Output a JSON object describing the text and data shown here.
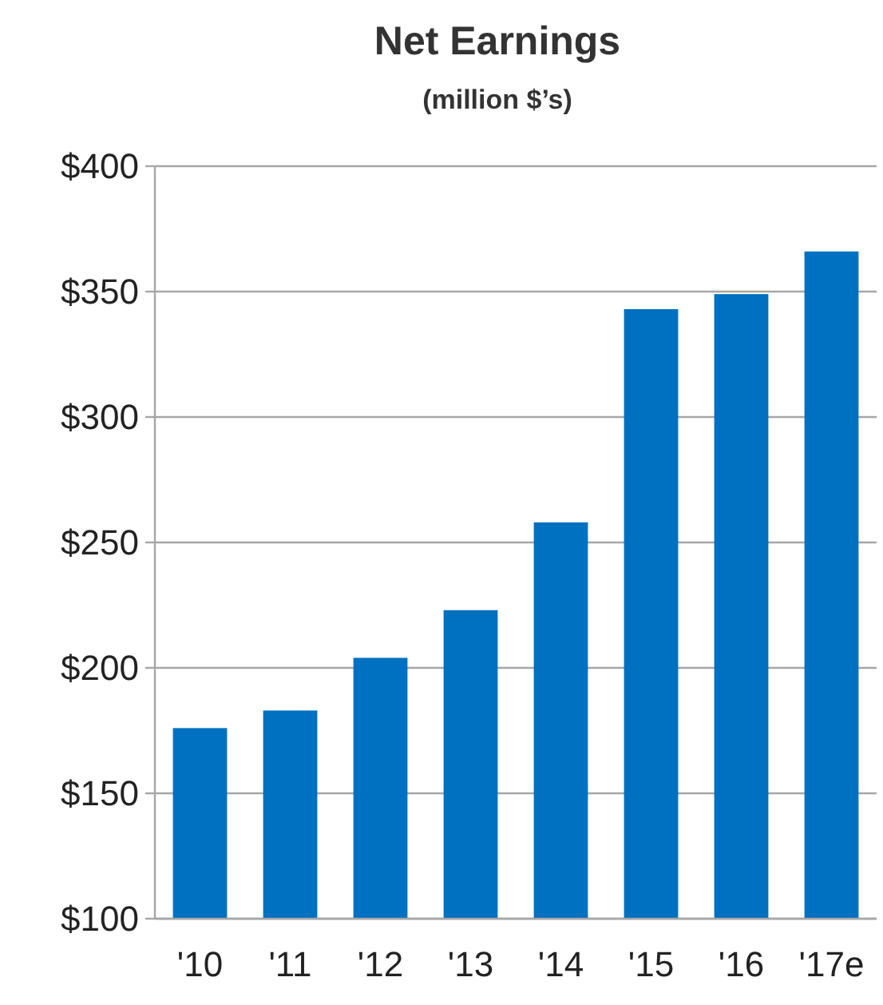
{
  "chart_data": {
    "type": "bar",
    "title": "Net Earnings",
    "subtitle": "(million $’s)",
    "categories": [
      "'10",
      "'11",
      "'12",
      "'13",
      "'14",
      "'15",
      "'16",
      "'17e"
    ],
    "values": [
      176,
      183,
      204,
      223,
      258,
      343,
      349,
      366
    ],
    "color": "#0070c0",
    "ylim": [
      100,
      400
    ],
    "yticks": [
      {
        "value": 100,
        "label": "$100"
      },
      {
        "value": 150,
        "label": "$150"
      },
      {
        "value": 200,
        "label": "$200"
      },
      {
        "value": 250,
        "label": "$250"
      },
      {
        "value": 300,
        "label": "$300"
      },
      {
        "value": 350,
        "label": "$350"
      },
      {
        "value": 400,
        "label": "$400"
      }
    ],
    "grid": "y"
  }
}
